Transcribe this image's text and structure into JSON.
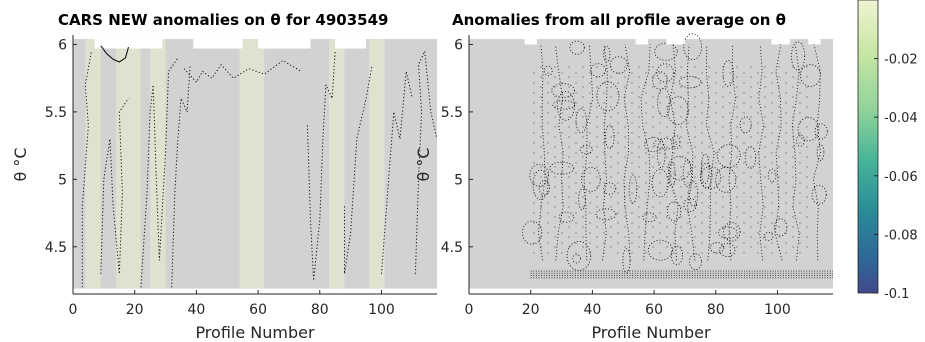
{
  "chart_data": [
    {
      "type": "heatmap",
      "title": "CARS NEW anomalies on θ for 4903549",
      "xlabel": "Profile Number",
      "ylabel": "θ °C",
      "xlim": [
        0,
        118
      ],
      "ylim": [
        4.15,
        6.07
      ],
      "x_ticks": [
        "0",
        "20",
        "40",
        "60",
        "80",
        "100"
      ],
      "y_ticks": [
        "4.5",
        "5",
        "5.5",
        "6"
      ],
      "grid": false,
      "fill_color": "#d2d2d2",
      "contour_style": "dotted",
      "contour_levels": [
        -0.02,
        0,
        0.02
      ],
      "contour_lines": [
        {
          "style": "solid",
          "points": [
            [
              9,
              5.99
            ],
            [
              11,
              5.93
            ],
            [
              13,
              5.89
            ],
            [
              15,
              5.87
            ],
            [
              17,
              5.9
            ],
            [
              18,
              5.98
            ]
          ]
        },
        {
          "style": "dotted",
          "points": [
            [
              3,
              4.2
            ],
            [
              3,
              4.8
            ],
            [
              5,
              5.4
            ],
            [
              4,
              5.7
            ],
            [
              6,
              5.95
            ]
          ]
        },
        {
          "style": "dotted",
          "points": [
            [
              9,
              4.3
            ],
            [
              10,
              5.0
            ],
            [
              12,
              5.3
            ],
            [
              13,
              4.8
            ],
            [
              15,
              4.3
            ],
            [
              16,
              4.9
            ],
            [
              15,
              5.5
            ],
            [
              18,
              5.6
            ]
          ]
        },
        {
          "style": "dotted",
          "points": [
            [
              22,
              4.2
            ],
            [
              24,
              4.9
            ],
            [
              25,
              5.5
            ],
            [
              26,
              5.7
            ],
            [
              27,
              5.0
            ],
            [
              28,
              4.4
            ],
            [
              30,
              5.2
            ],
            [
              31,
              5.8
            ],
            [
              34,
              5.9
            ]
          ]
        },
        {
          "style": "dotted",
          "points": [
            [
              32,
              4.2
            ],
            [
              33,
              4.9
            ],
            [
              34,
              5.3
            ],
            [
              35,
              5.6
            ],
            [
              37,
              5.5
            ],
            [
              38,
              5.85
            ]
          ]
        },
        {
          "style": "dotted",
          "points": [
            [
              36,
              5.82
            ],
            [
              40,
              5.72
            ],
            [
              42,
              5.8
            ],
            [
              45,
              5.75
            ],
            [
              48,
              5.85
            ],
            [
              52,
              5.75
            ],
            [
              57,
              5.82
            ],
            [
              62,
              5.78
            ],
            [
              68,
              5.88
            ],
            [
              74,
              5.8
            ]
          ]
        },
        {
          "style": "dotted",
          "points": [
            [
              76,
              5.4
            ],
            [
              77,
              4.7
            ],
            [
              78,
              4.25
            ],
            [
              80,
              4.7
            ],
            [
              81,
              5.3
            ],
            [
              82,
              5.7
            ],
            [
              84,
              5.6
            ],
            [
              85,
              5.95
            ]
          ]
        },
        {
          "style": "dotted",
          "points": [
            [
              88,
              4.8
            ],
            [
              88,
              4.3
            ],
            [
              90,
              4.6
            ],
            [
              92,
              5.3
            ],
            [
              95,
              5.6
            ],
            [
              97,
              5.85
            ]
          ]
        },
        {
          "style": "dotted",
          "points": [
            [
              100,
              4.3
            ],
            [
              102,
              4.9
            ],
            [
              104,
              5.5
            ],
            [
              106,
              5.3
            ],
            [
              108,
              5.8
            ],
            [
              110,
              5.6
            ]
          ]
        },
        {
          "style": "dotted",
          "points": [
            [
              111,
              4.3
            ],
            [
              112,
              5.0
            ],
            [
              113,
              5.5
            ],
            [
              112,
              5.85
            ],
            [
              114,
              5.95
            ],
            [
              116,
              5.5
            ],
            [
              118,
              5.3
            ]
          ]
        }
      ]
    },
    {
      "type": "heatmap",
      "title": "Anomalies from all profile average on θ",
      "xlabel": "Profile Number",
      "ylabel": "θ °C",
      "xlim": [
        0,
        118
      ],
      "ylim": [
        4.15,
        6.07
      ],
      "x_ticks": [
        "0",
        "20",
        "40",
        "60",
        "80",
        "100"
      ],
      "y_ticks": [
        "4.5",
        "5",
        "5.5",
        "6"
      ],
      "grid": false,
      "fill_color": "#d2d2d2",
      "contour_style": "dotted",
      "contour_band_y": [
        4.27,
        4.32
      ],
      "contour_band_x": [
        20,
        118
      ]
    }
  ],
  "colorbar": {
    "ticks": [
      "-0.02",
      "-0.04",
      "-0.06",
      "-0.08",
      "-0.1"
    ],
    "range": [
      -0.1,
      0
    ],
    "colors_top_to_bottom": [
      "#e8f0c8",
      "#c6e3a0",
      "#8fd19a",
      "#4fb898",
      "#2c8f97",
      "#2d6a98",
      "#3d4f8e"
    ]
  }
}
